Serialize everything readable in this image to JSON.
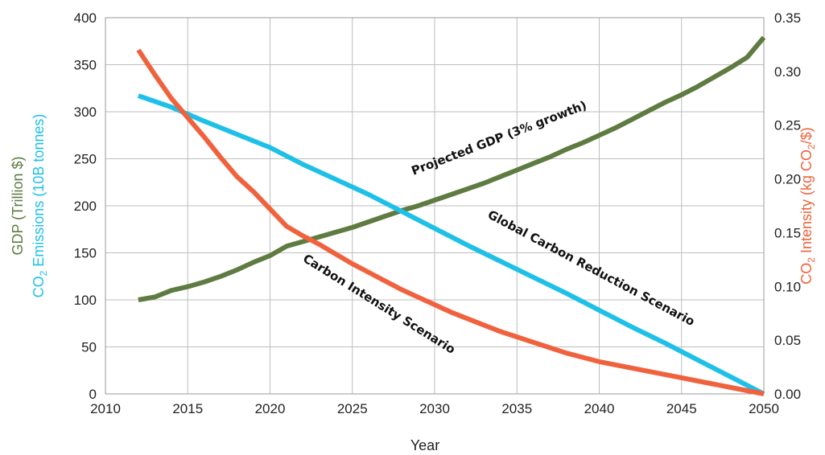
{
  "chart_data": {
    "type": "line",
    "xlabel": "Year",
    "ylabel_left_line1": "GDP (Trillion $)",
    "ylabel_left_line2_prefix": "CO",
    "ylabel_left_line2_sub": "2",
    "ylabel_left_line2_suffix": " Emissions (10B tonnes)",
    "ylabel_right_prefix": "CO",
    "ylabel_right_sub": "2",
    "ylabel_right_mid": " Intensity (kg CO",
    "ylabel_right_sub2": "2",
    "ylabel_right_suffix": "/$)",
    "xlim": [
      2010,
      2050
    ],
    "ylim_left": [
      0,
      400
    ],
    "ylim_right": [
      0,
      0.35
    ],
    "x_ticks": [
      "2010",
      "2015",
      "2020",
      "2025",
      "2030",
      "2035",
      "2040",
      "2045",
      "2050"
    ],
    "y_left_ticks": [
      "0",
      "50",
      "100",
      "150",
      "200",
      "250",
      "300",
      "350",
      "400"
    ],
    "y_right_ticks": [
      "0.00",
      "0.05",
      "0.10",
      "0.15",
      "0.20",
      "0.25",
      "0.30",
      "0.35"
    ],
    "grid": true,
    "colors": {
      "gdp": "#5e7b41",
      "emissions": "#1ec0e8",
      "intensity": "#f0623d",
      "left_title_gdp": "#5e7b41",
      "left_title_co2": "#1ec0e8",
      "right_title": "#f0623d"
    },
    "series": [
      {
        "key": "gdp",
        "axis": "left",
        "x": [
          2012,
          2013,
          2014,
          2015,
          2016,
          2017,
          2018,
          2019,
          2020,
          2021,
          2022,
          2023,
          2024,
          2025,
          2026,
          2027,
          2028,
          2029,
          2030,
          2031,
          2032,
          2033,
          2034,
          2035,
          2036,
          2037,
          2038,
          2039,
          2040,
          2041,
          2042,
          2043,
          2044,
          2045,
          2046,
          2047,
          2048,
          2049,
          2050
        ],
        "values": [
          100,
          103,
          110,
          114,
          119,
          125,
          132,
          140,
          147,
          157,
          162,
          167,
          172,
          177,
          183,
          189,
          195,
          200,
          206,
          212,
          218,
          224,
          231,
          238,
          245,
          252,
          260,
          267,
          275,
          283,
          292,
          301,
          310,
          318,
          327,
          337,
          347,
          358,
          379
        ]
      },
      {
        "key": "emissions",
        "axis": "left",
        "x": [
          2012,
          2014,
          2016,
          2018,
          2020,
          2022,
          2024,
          2026,
          2028,
          2030,
          2032,
          2034,
          2036,
          2038,
          2040,
          2042,
          2044,
          2046,
          2048,
          2050
        ],
        "values": [
          317,
          305,
          290,
          276,
          262,
          244,
          228,
          212,
          194,
          176,
          158,
          141,
          124,
          107,
          89,
          71,
          54,
          36,
          18,
          0
        ]
      },
      {
        "key": "intensity",
        "axis": "right",
        "x": [
          2012,
          2013,
          2014,
          2015,
          2016,
          2017,
          2018,
          2019,
          2020,
          2021,
          2022,
          2023,
          2024,
          2025,
          2026,
          2027,
          2028,
          2029,
          2030,
          2031,
          2032,
          2033,
          2034,
          2035,
          2036,
          2037,
          2038,
          2039,
          2040,
          2041,
          2042,
          2043,
          2044,
          2045,
          2046,
          2047,
          2048,
          2049,
          2050
        ],
        "values": [
          0.32,
          0.297,
          0.275,
          0.257,
          0.239,
          0.22,
          0.202,
          0.188,
          0.172,
          0.156,
          0.147,
          0.139,
          0.13,
          0.121,
          0.113,
          0.105,
          0.097,
          0.09,
          0.083,
          0.076,
          0.07,
          0.064,
          0.058,
          0.053,
          0.048,
          0.043,
          0.038,
          0.034,
          0.03,
          0.027,
          0.024,
          0.021,
          0.018,
          0.015,
          0.012,
          0.009,
          0.006,
          0.003,
          0.0
        ]
      }
    ],
    "annotations": [
      {
        "key": "gdp_label",
        "text": "Projected GDP (3% growth)",
        "x": 2034.0,
        "y": 268,
        "axis": "left",
        "angle": -21
      },
      {
        "key": "emissions_label",
        "text": "Global Carbon Reduction Scenario",
        "x": 2039.4,
        "y": 130,
        "axis": "left",
        "angle": 28
      },
      {
        "key": "intensity_label",
        "text": "Carbon Intensity Scenario",
        "x": 2026.5,
        "y": 92,
        "axis": "left",
        "angle": 32
      }
    ]
  }
}
